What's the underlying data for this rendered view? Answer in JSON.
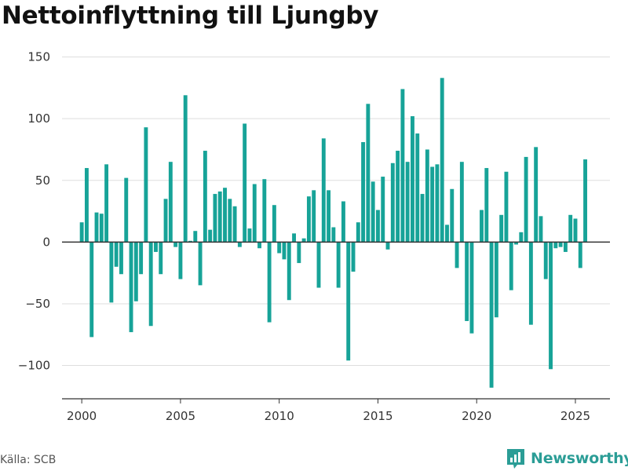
{
  "title": "Nettoinflyttning till Ljungby",
  "source": "Källa: SCB",
  "brand": "Newsworthy",
  "chart_data": {
    "type": "bar",
    "title": "Nettoinflyttning till Ljungby",
    "xlabel": "",
    "ylabel": "",
    "ylim": [
      -127,
      158
    ],
    "xlim": [
      1999.0,
      2026.75
    ],
    "yticks": [
      -100,
      -50,
      0,
      50,
      100,
      150
    ],
    "ytick_labels": [
      "−100",
      "−50",
      "0",
      "50",
      "100",
      "150"
    ],
    "xticks": [
      2000,
      2005,
      2010,
      2015,
      2020,
      2025
    ],
    "xtick_labels": [
      "2000",
      "2005",
      "2010",
      "2015",
      "2020",
      "2025"
    ],
    "grid": "horizontal",
    "bar_color": "#17a398",
    "start": [
      2000,
      1
    ],
    "frequency": "quarterly",
    "values": [
      16,
      60,
      -77,
      24,
      23,
      63,
      -49,
      -20,
      -26,
      52,
      -73,
      -48,
      -26,
      93,
      -68,
      -8,
      -26,
      35,
      65,
      -4,
      -30,
      119,
      1,
      9,
      -35,
      74,
      10,
      39,
      41,
      44,
      35,
      29,
      -4,
      96,
      11,
      47,
      -5,
      51,
      -65,
      30,
      -9,
      -14,
      -47,
      7,
      -17,
      3,
      37,
      42,
      -37,
      84,
      42,
      12,
      -37,
      33,
      -96,
      -24,
      16,
      81,
      112,
      49,
      26,
      53,
      -6,
      64,
      74,
      124,
      65,
      102,
      88,
      39,
      75,
      61,
      63,
      133,
      14,
      43,
      -21,
      65,
      -64,
      -74,
      0,
      26,
      60,
      -118,
      -61,
      22,
      57,
      -39,
      -2,
      8,
      69,
      -67,
      77,
      21,
      -30,
      -103,
      -5,
      -4,
      -8,
      22,
      19,
      -21,
      67
    ]
  }
}
